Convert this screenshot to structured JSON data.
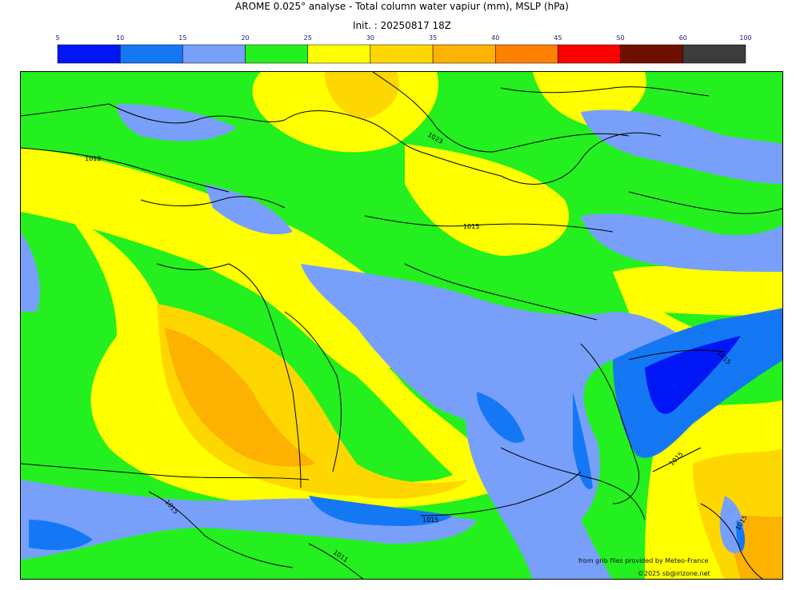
{
  "title": "AROME 0.025° analyse - Total column water vapiur (mm), MSLP (hPa)",
  "init": "Init. : 20250817 18Z",
  "colorbar": {
    "ticks": [
      "5",
      "10",
      "15",
      "20",
      "25",
      "30",
      "35",
      "40",
      "45",
      "50",
      "60",
      "100"
    ],
    "colors": [
      "#0016f5",
      "#1478f5",
      "#78a0fa",
      "#23f01e",
      "#ffff00",
      "#fed700",
      "#fdb100",
      "#ff7f00",
      "#ff0000",
      "#6e0f00",
      "#3c3c3c"
    ]
  },
  "isobar_labels": [
    "1019",
    "1023",
    "1015",
    "1015",
    "1015",
    "1015",
    "1011",
    "1015",
    "1015"
  ],
  "credits": {
    "source": "from grib files provided by Meteo-France",
    "copyright": "©2025 sb@irizone.net"
  }
}
